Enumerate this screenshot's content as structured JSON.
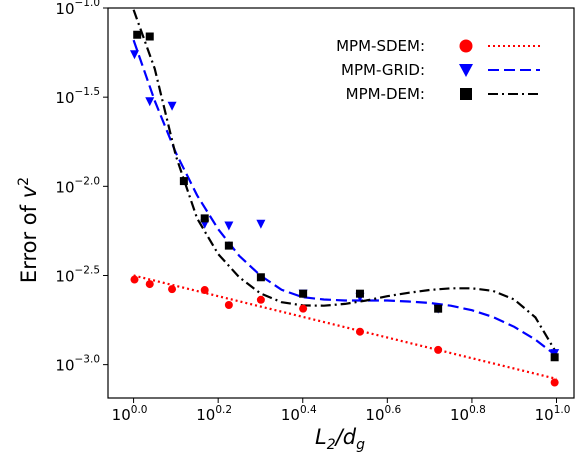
{
  "chart_data": {
    "type": "scatter",
    "xscale": "log10",
    "yscale": "log10",
    "xlim": [
      0.87,
      11.0
    ],
    "ylim": [
      0.00065,
      0.1
    ],
    "grid": false,
    "legend_position": "top-right",
    "xlabel": {
      "main": "L",
      "sub1": "2",
      "slash": "/d",
      "sub2": "g"
    },
    "ylabel": {
      "main": "Error of ",
      "var": "v",
      "sup": "2"
    },
    "xticks": [
      {
        "value": 1.0,
        "base": "10",
        "exp": "0.0"
      },
      {
        "value": 1.585,
        "base": "10",
        "exp": "0.2"
      },
      {
        "value": 2.512,
        "base": "10",
        "exp": "0.4"
      },
      {
        "value": 3.981,
        "base": "10",
        "exp": "0.6"
      },
      {
        "value": 6.31,
        "base": "10",
        "exp": "0.8"
      },
      {
        "value": 10.0,
        "base": "10",
        "exp": "1.0"
      }
    ],
    "yticks": [
      {
        "value": 0.001,
        "base": "10",
        "exp": "−3.0"
      },
      {
        "value": 0.003162,
        "base": "10",
        "exp": "−2.5"
      },
      {
        "value": 0.01,
        "base": "10",
        "exp": "−2.0"
      },
      {
        "value": 0.03162,
        "base": "10",
        "exp": "−1.5"
      },
      {
        "value": 0.1,
        "base": "10",
        "exp": "−1.0"
      }
    ],
    "series": [
      {
        "name": "MPM-SDEM:",
        "color": "#ff0000",
        "marker": "circle",
        "linestyle": "dotted",
        "points": [
          [
            1.005,
            0.003
          ],
          [
            1.092,
            0.00283
          ],
          [
            1.233,
            0.00265
          ],
          [
            1.473,
            0.00262
          ],
          [
            1.68,
            0.00216
          ],
          [
            2.0,
            0.00231
          ],
          [
            2.517,
            0.00206
          ],
          [
            3.43,
            0.00153
          ],
          [
            5.25,
            0.00121
          ],
          [
            9.9,
            0.000794
          ]
        ],
        "fit": [
          [
            1.0,
            0.00316
          ],
          [
            10.0,
            0.000832
          ]
        ]
      },
      {
        "name": "MPM-GRID:",
        "color": "#0000ff",
        "marker": "triangle-down",
        "linestyle": "dashed",
        "points": [
          [
            1.005,
            0.055
          ],
          [
            1.092,
            0.03
          ],
          [
            1.233,
            0.0283
          ],
          [
            1.473,
            0.00617
          ],
          [
            1.68,
            0.00603
          ],
          [
            2.0,
            0.00617
          ],
          [
            2.517,
            0.0025
          ],
          [
            3.43,
            0.0024
          ],
          [
            5.25,
            0.00206
          ],
          [
            9.9,
            0.00116
          ]
        ],
        "fit": [
          [
            1.0,
            0.0661
          ],
          [
            1.122,
            0.0302
          ],
          [
            1.259,
            0.0154
          ],
          [
            1.413,
            0.00891
          ],
          [
            1.585,
            0.00575
          ],
          [
            1.778,
            0.00407
          ],
          [
            1.995,
            0.00316
          ],
          [
            2.239,
            0.00263
          ],
          [
            2.512,
            0.00239
          ],
          [
            2.818,
            0.00232
          ],
          [
            3.162,
            0.00229
          ],
          [
            3.548,
            0.00229
          ],
          [
            3.981,
            0.00229
          ],
          [
            4.467,
            0.00226
          ],
          [
            5.012,
            0.00222
          ],
          [
            5.623,
            0.00214
          ],
          [
            6.31,
            0.00202
          ],
          [
            7.079,
            0.00185
          ],
          [
            7.943,
            0.00163
          ],
          [
            8.913,
            0.00138
          ],
          [
            10.0,
            0.00112
          ]
        ]
      },
      {
        "name": "MPM-DEM:",
        "color": "#000000",
        "marker": "square",
        "linestyle": "dashdot",
        "points": [
          [
            1.02,
            0.0708
          ],
          [
            1.092,
            0.0692
          ],
          [
            1.315,
            0.0107
          ],
          [
            1.473,
            0.00661
          ],
          [
            1.68,
            0.00465
          ],
          [
            2.0,
            0.00309
          ],
          [
            2.517,
            0.0025
          ],
          [
            3.43,
            0.0025
          ],
          [
            5.25,
            0.00206
          ],
          [
            9.9,
            0.0011
          ]
        ],
        "fit": [
          [
            1.0,
            0.0977
          ],
          [
            1.122,
            0.0457
          ],
          [
            1.259,
            0.0148
          ],
          [
            1.413,
            0.00661
          ],
          [
            1.585,
            0.00417
          ],
          [
            1.778,
            0.00309
          ],
          [
            1.995,
            0.00251
          ],
          [
            2.239,
            0.00224
          ],
          [
            2.512,
            0.00215
          ],
          [
            2.818,
            0.00214
          ],
          [
            3.162,
            0.00219
          ],
          [
            3.548,
            0.00229
          ],
          [
            3.981,
            0.00242
          ],
          [
            4.467,
            0.00253
          ],
          [
            5.012,
            0.00262
          ],
          [
            5.623,
            0.00268
          ],
          [
            6.31,
            0.00268
          ],
          [
            7.079,
            0.00259
          ],
          [
            7.943,
            0.00232
          ],
          [
            8.913,
            0.00184
          ],
          [
            10.0,
            0.00116
          ]
        ]
      }
    ]
  }
}
